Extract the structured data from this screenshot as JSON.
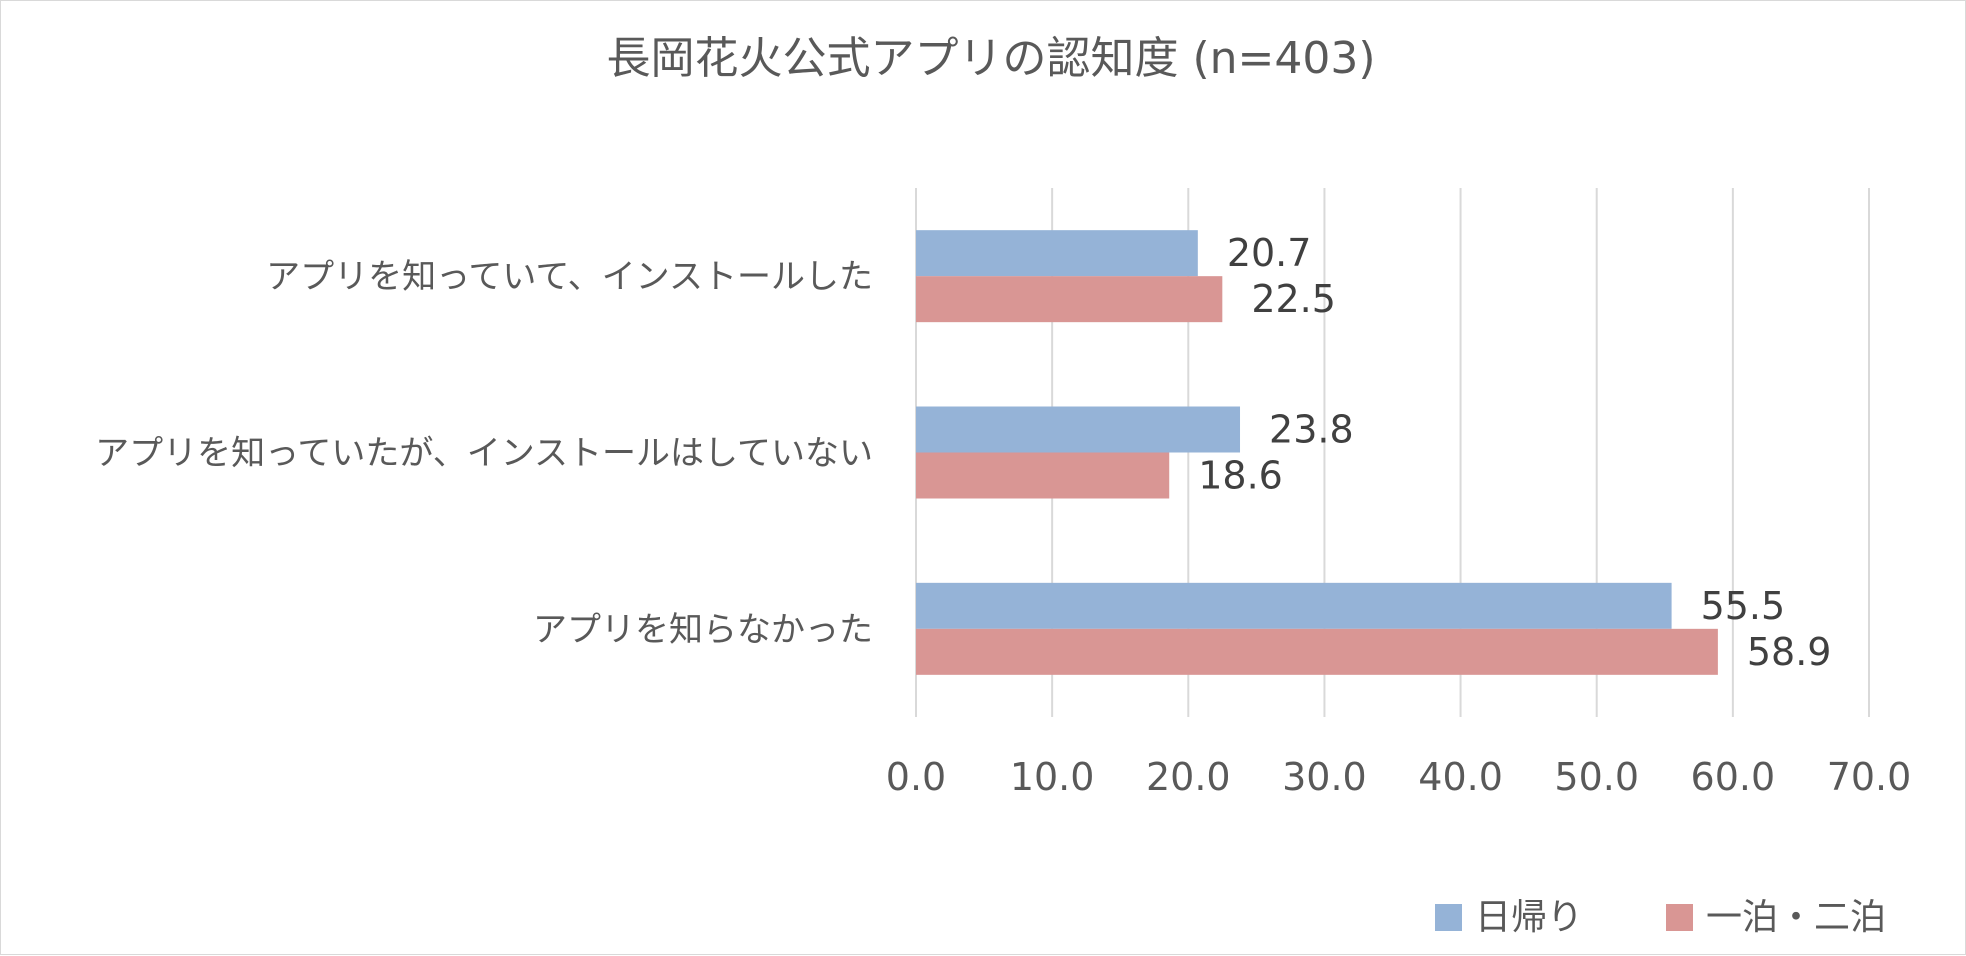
{
  "chart_data": {
    "type": "bar",
    "orientation": "horizontal",
    "title": "長岡花火公式アプリの認知度 (n=403)",
    "categories": [
      "アプリを知っていて、インストールした",
      "アプリを知っていたが、インストールはしていない",
      "アプリを知らなかった"
    ],
    "series": [
      {
        "name": "日帰り",
        "color": "#95b3d7",
        "values": [
          20.7,
          23.8,
          55.5
        ]
      },
      {
        "name": "一泊・二泊",
        "color": "#d99694",
        "values": [
          22.5,
          18.6,
          58.9
        ]
      }
    ],
    "xlim": [
      0,
      70
    ],
    "xticks": [
      0,
      10,
      20,
      30,
      40,
      50,
      60,
      70
    ],
    "tick_labels": [
      "0.0",
      "10.0",
      "20.0",
      "30.0",
      "40.0",
      "50.0",
      "60.0",
      "70.0"
    ],
    "grid": true,
    "data_labels": true,
    "legend_position": "bottom-right"
  }
}
